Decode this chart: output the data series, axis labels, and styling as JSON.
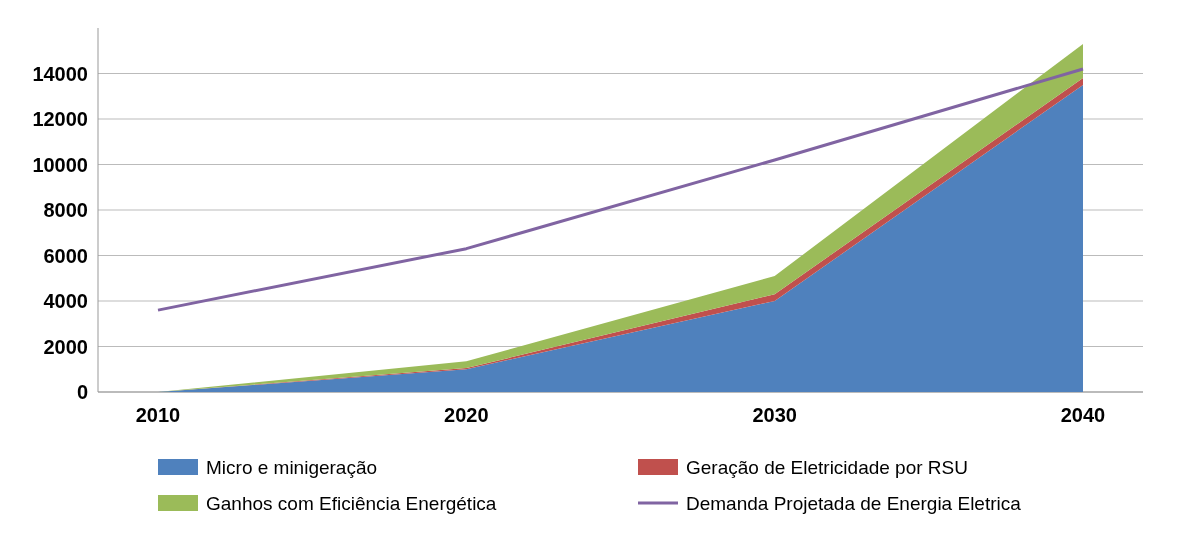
{
  "chart_data": {
    "type": "area",
    "stacked": true,
    "categories": [
      "2010",
      "2020",
      "2030",
      "2040"
    ],
    "series": [
      {
        "name": "Micro e minigeração",
        "color": "#4f81bd",
        "values": [
          0,
          1000,
          4000,
          13500
        ]
      },
      {
        "name": "Geração de Eletricidade por RSU",
        "color": "#c0504d",
        "values": [
          0,
          50,
          300,
          300
        ]
      },
      {
        "name": "Ganhos com Eficiência Energética",
        "color": "#9bbb59",
        "values": [
          0,
          300,
          800,
          1500
        ]
      },
      {
        "name": "Demanda Projetada de Energia Eletrica",
        "color": "#8064a2",
        "type": "line",
        "values": [
          3600,
          6300,
          10200,
          14200
        ]
      }
    ],
    "ylim": [
      0,
      16000
    ],
    "yticks": [
      0,
      2000,
      4000,
      6000,
      8000,
      10000,
      12000,
      14000
    ],
    "grid": "y",
    "legend": "bottom"
  }
}
